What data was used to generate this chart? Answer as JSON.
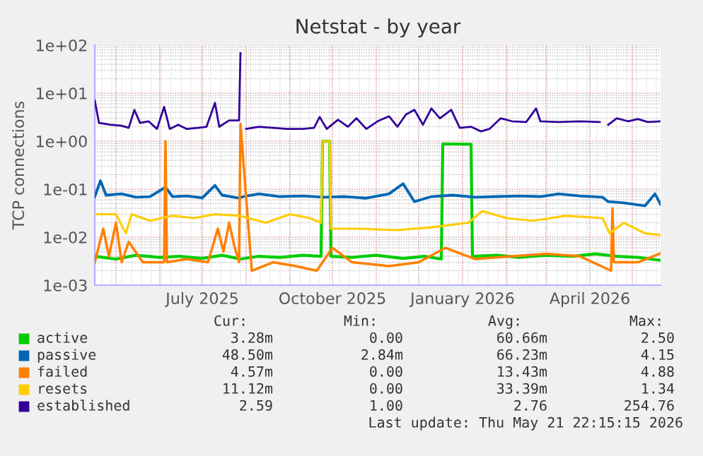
{
  "chart_data": {
    "type": "line",
    "title": "Netstat - by year",
    "ylabel": "TCP connections",
    "log": "y",
    "grid": true,
    "legend": "bottom",
    "xlim": [
      "2025-04-16",
      "2026-05-21"
    ],
    "xticks": [
      {
        "value": "2025-07-01",
        "label": "July 2025"
      },
      {
        "value": "2025-10-01",
        "label": "October 2025"
      },
      {
        "value": "2026-01-01",
        "label": "January 2026"
      },
      {
        "value": "2026-04-01",
        "label": "April 2026"
      }
    ],
    "ylim": [
      0.001,
      100
    ],
    "yticks": [
      {
        "value": 0.001,
        "label": "1e-03"
      },
      {
        "value": 0.01,
        "label": "1e-02"
      },
      {
        "value": 0.1,
        "label": "1e-01"
      },
      {
        "value": 1,
        "label": "1e+00"
      },
      {
        "value": 10,
        "label": "1e+01"
      },
      {
        "value": 100,
        "label": "1e+02"
      }
    ],
    "annotations": [
      "Cur:",
      "Min:",
      "Avg:",
      "Max:",
      "3.28m",
      "0.00",
      "60.66m",
      "2.50",
      "48.50m",
      "2.84m",
      "66.23m",
      "4.15",
      "4.57m",
      "0.00",
      "13.43m",
      "4.88",
      "11.12m",
      "0.00",
      "33.39m",
      "1.34",
      "2.59",
      "1.00",
      "2.76",
      "254.76",
      "Last update: Thu May 21 22:15:15 2026"
    ],
    "series": [
      {
        "name": "active",
        "color": "#00cc00",
        "x": [
          "2025-04-16",
          "2025-05-01",
          "2025-05-15",
          "2025-06-01",
          "2025-06-15",
          "2025-07-01",
          "2025-07-15",
          "2025-07-28",
          "2025-08-10",
          "2025-08-25",
          "2025-09-10",
          "2025-09-23",
          "2025-09-24",
          "2025-09-29",
          "2025-09-30",
          "2025-10-15",
          "2025-11-01",
          "2025-11-20",
          "2025-12-05",
          "2025-12-17",
          "2025-12-18",
          "2026-01-07",
          "2026-01-08",
          "2026-01-25",
          "2026-02-10",
          "2026-03-01",
          "2026-03-20",
          "2026-04-05",
          "2026-04-20",
          "2026-05-05",
          "2026-05-21"
        ],
        "values": [
          0.004,
          0.0035,
          0.0042,
          0.0038,
          0.004,
          0.0036,
          0.0042,
          0.0035,
          0.004,
          0.0038,
          0.0042,
          0.004,
          1.0,
          1.0,
          0.004,
          0.0038,
          0.0042,
          0.0036,
          0.004,
          0.0035,
          0.88,
          0.86,
          0.004,
          0.0042,
          0.0038,
          0.0042,
          0.004,
          0.0045,
          0.004,
          0.0038,
          0.0033
        ]
      },
      {
        "name": "passive",
        "color": "#0066b3",
        "x": [
          "2025-04-16",
          "2025-04-20",
          "2025-04-24",
          "2025-05-05",
          "2025-05-15",
          "2025-05-25",
          "2025-06-05",
          "2025-06-10",
          "2025-06-20",
          "2025-07-01",
          "2025-07-10",
          "2025-07-15",
          "2025-07-27",
          "2025-07-30",
          "2025-08-10",
          "2025-08-25",
          "2025-09-10",
          "2025-09-25",
          "2025-10-10",
          "2025-10-25",
          "2025-11-10",
          "2025-11-20",
          "2025-11-28",
          "2025-12-10",
          "2025-12-25",
          "2026-01-10",
          "2026-01-25",
          "2026-02-10",
          "2026-02-25",
          "2026-03-10",
          "2026-03-25",
          "2026-04-10",
          "2026-04-14",
          "2026-04-25",
          "2026-05-10",
          "2026-05-17",
          "2026-05-21"
        ],
        "values": [
          0.07,
          0.15,
          0.075,
          0.08,
          0.068,
          0.07,
          0.11,
          0.07,
          0.072,
          0.066,
          0.12,
          0.075,
          0.065,
          0.07,
          0.08,
          0.07,
          0.072,
          0.068,
          0.07,
          0.065,
          0.08,
          0.13,
          0.055,
          0.07,
          0.075,
          0.068,
          0.07,
          0.072,
          0.07,
          0.08,
          0.072,
          0.068,
          0.055,
          0.052,
          0.045,
          0.08,
          0.0485
        ]
      },
      {
        "name": "failed",
        "color": "#ff8000",
        "x": [
          "2025-04-16",
          "2025-04-22",
          "2025-04-26",
          "2025-05-01",
          "2025-05-05",
          "2025-05-10",
          "2025-05-20",
          "2025-06-04",
          "2025-06-05",
          "2025-06-06",
          "2025-06-20",
          "2025-07-05",
          "2025-07-12",
          "2025-07-16",
          "2025-07-20",
          "2025-07-24",
          "2025-07-27",
          "2025-07-28",
          "2025-08-05",
          "2025-08-20",
          "2025-09-05",
          "2025-09-20",
          "2025-10-01",
          "2025-10-15",
          "2025-11-10",
          "2025-12-01",
          "2025-12-20",
          "2026-01-10",
          "2026-02-05",
          "2026-03-01",
          "2026-03-25",
          "2026-04-16",
          "2026-04-17",
          "2026-04-18",
          "2026-05-05",
          "2026-05-21"
        ],
        "values": [
          0.003,
          0.015,
          0.004,
          0.02,
          0.003,
          0.008,
          0.003,
          0.003,
          1.0,
          0.003,
          0.0035,
          0.003,
          0.015,
          0.005,
          0.02,
          0.006,
          0.003,
          2.3,
          0.002,
          0.003,
          0.0025,
          0.002,
          0.006,
          0.003,
          0.0025,
          0.003,
          0.006,
          0.0035,
          0.004,
          0.0045,
          0.004,
          0.002,
          0.04,
          0.003,
          0.003,
          0.0046
        ]
      },
      {
        "name": "resets",
        "color": "#ffcc00",
        "x": [
          "2025-04-16",
          "2025-05-01",
          "2025-05-08",
          "2025-05-12",
          "2025-05-25",
          "2025-06-10",
          "2025-06-25",
          "2025-07-10",
          "2025-07-27",
          "2025-08-15",
          "2025-09-01",
          "2025-09-15",
          "2025-09-23",
          "2025-09-24",
          "2025-09-29",
          "2025-09-30",
          "2025-10-20",
          "2025-11-15",
          "2025-12-10",
          "2026-01-05",
          "2026-01-15",
          "2026-02-01",
          "2026-02-20",
          "2026-03-15",
          "2026-04-10",
          "2026-04-15",
          "2026-04-25",
          "2026-05-10",
          "2026-05-21"
        ],
        "values": [
          0.03,
          0.03,
          0.012,
          0.03,
          0.022,
          0.028,
          0.025,
          0.03,
          0.028,
          0.02,
          0.03,
          0.025,
          0.02,
          1.0,
          1.0,
          0.015,
          0.015,
          0.014,
          0.016,
          0.02,
          0.035,
          0.025,
          0.022,
          0.028,
          0.025,
          0.012,
          0.02,
          0.012,
          0.0111
        ]
      },
      {
        "name": "established",
        "color": "#330099",
        "x": [
          "2025-04-16",
          "2025-04-19",
          "2025-04-27",
          "2025-05-05",
          "2025-05-10",
          "2025-05-14",
          "2025-05-18",
          "2025-05-24",
          "2025-05-30",
          "2025-06-04",
          "2025-06-08",
          "2025-06-14",
          "2025-06-20",
          "2025-06-28",
          "2025-07-04",
          "2025-07-10",
          "2025-07-13",
          "2025-07-20",
          "2025-07-27",
          "2025-07-28",
          "2025-07-30",
          "2025-08-01",
          "2025-08-10",
          "2025-08-20",
          "2025-08-30",
          "2025-09-10",
          "2025-09-18",
          "2025-09-22",
          "2025-09-27",
          "2025-10-05",
          "2025-10-12",
          "2025-10-18",
          "2025-10-25",
          "2025-11-02",
          "2025-11-10",
          "2025-11-16",
          "2025-11-22",
          "2025-11-28",
          "2025-12-04",
          "2025-12-10",
          "2025-12-16",
          "2025-12-24",
          "2025-12-30",
          "2026-01-07",
          "2026-01-14",
          "2026-01-20",
          "2026-01-28",
          "2026-02-05",
          "2026-02-15",
          "2026-02-22",
          "2026-02-25",
          "2026-03-10",
          "2026-03-25",
          "2026-04-08",
          "2026-04-12",
          "2026-04-14",
          "2026-04-20",
          "2026-04-28",
          "2026-05-05",
          "2026-05-12",
          "2026-05-21"
        ],
        "values": [
          7,
          2.4,
          2.2,
          2.1,
          1.9,
          4.5,
          2.4,
          2.6,
          1.8,
          5.2,
          1.8,
          2.2,
          1.8,
          1.9,
          2.0,
          6.3,
          2.0,
          2.7,
          2.7,
          68,
          null,
          1.8,
          2.0,
          1.9,
          1.8,
          1.8,
          1.9,
          3.2,
          1.8,
          2.8,
          2.0,
          3.0,
          1.8,
          2.6,
          3.3,
          2.0,
          3.6,
          4.5,
          2.2,
          4.8,
          3.0,
          4.5,
          1.9,
          2.0,
          1.6,
          1.8,
          3.0,
          2.6,
          2.5,
          4.8,
          2.6,
          2.5,
          2.6,
          2.5,
          null,
          2.2,
          3.0,
          2.6,
          2.9,
          2.5,
          2.59
        ]
      }
    ]
  }
}
